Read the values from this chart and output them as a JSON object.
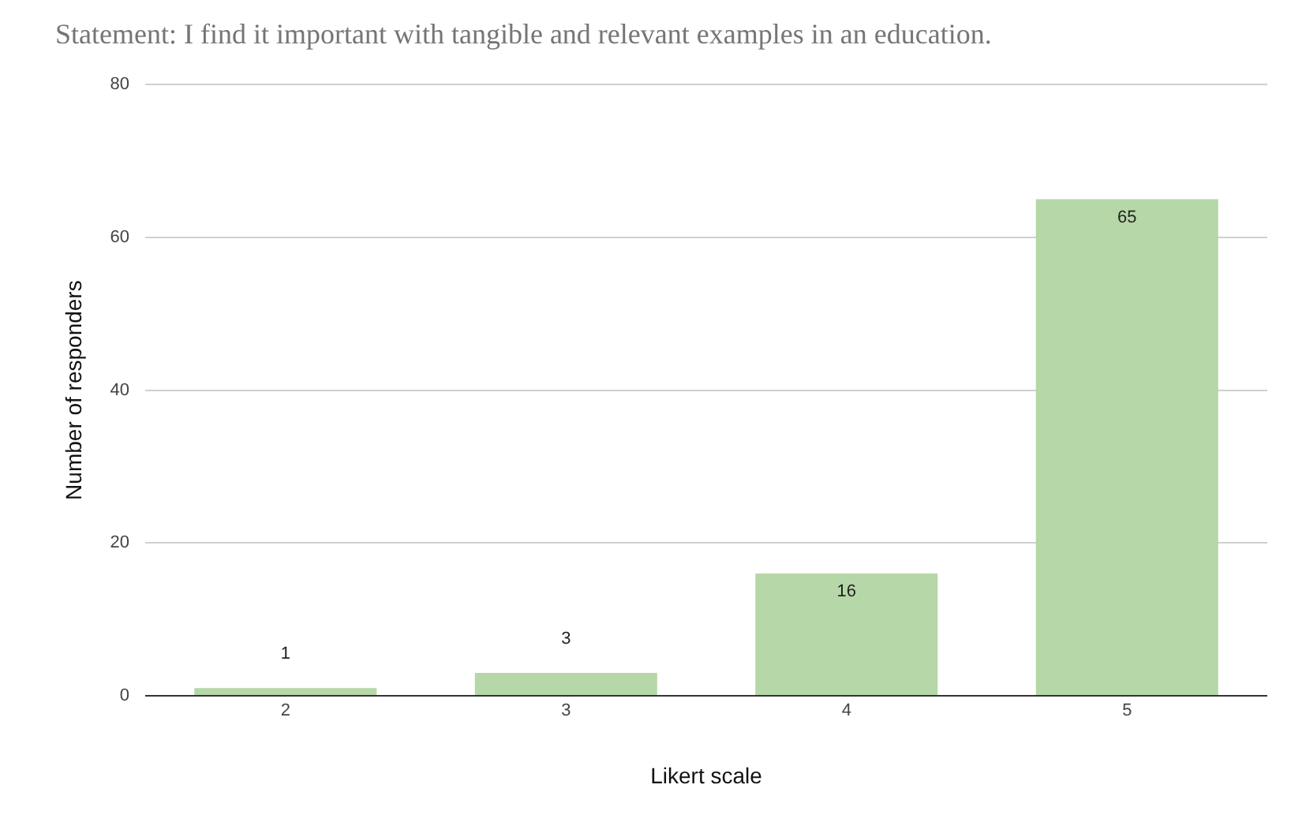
{
  "chart_data": {
    "type": "bar",
    "title": "Statement: I find it important with tangible and relevant examples in an education.",
    "xlabel": "Likert scale",
    "ylabel": "Number of responders",
    "categories": [
      "2",
      "3",
      "4",
      "5"
    ],
    "values": [
      1,
      3,
      16,
      65
    ],
    "color": "#b6d7a8",
    "ylim": [
      0,
      80
    ],
    "yticks": [
      0,
      20,
      40,
      60,
      80
    ],
    "grid": "y",
    "data_labels": true
  }
}
